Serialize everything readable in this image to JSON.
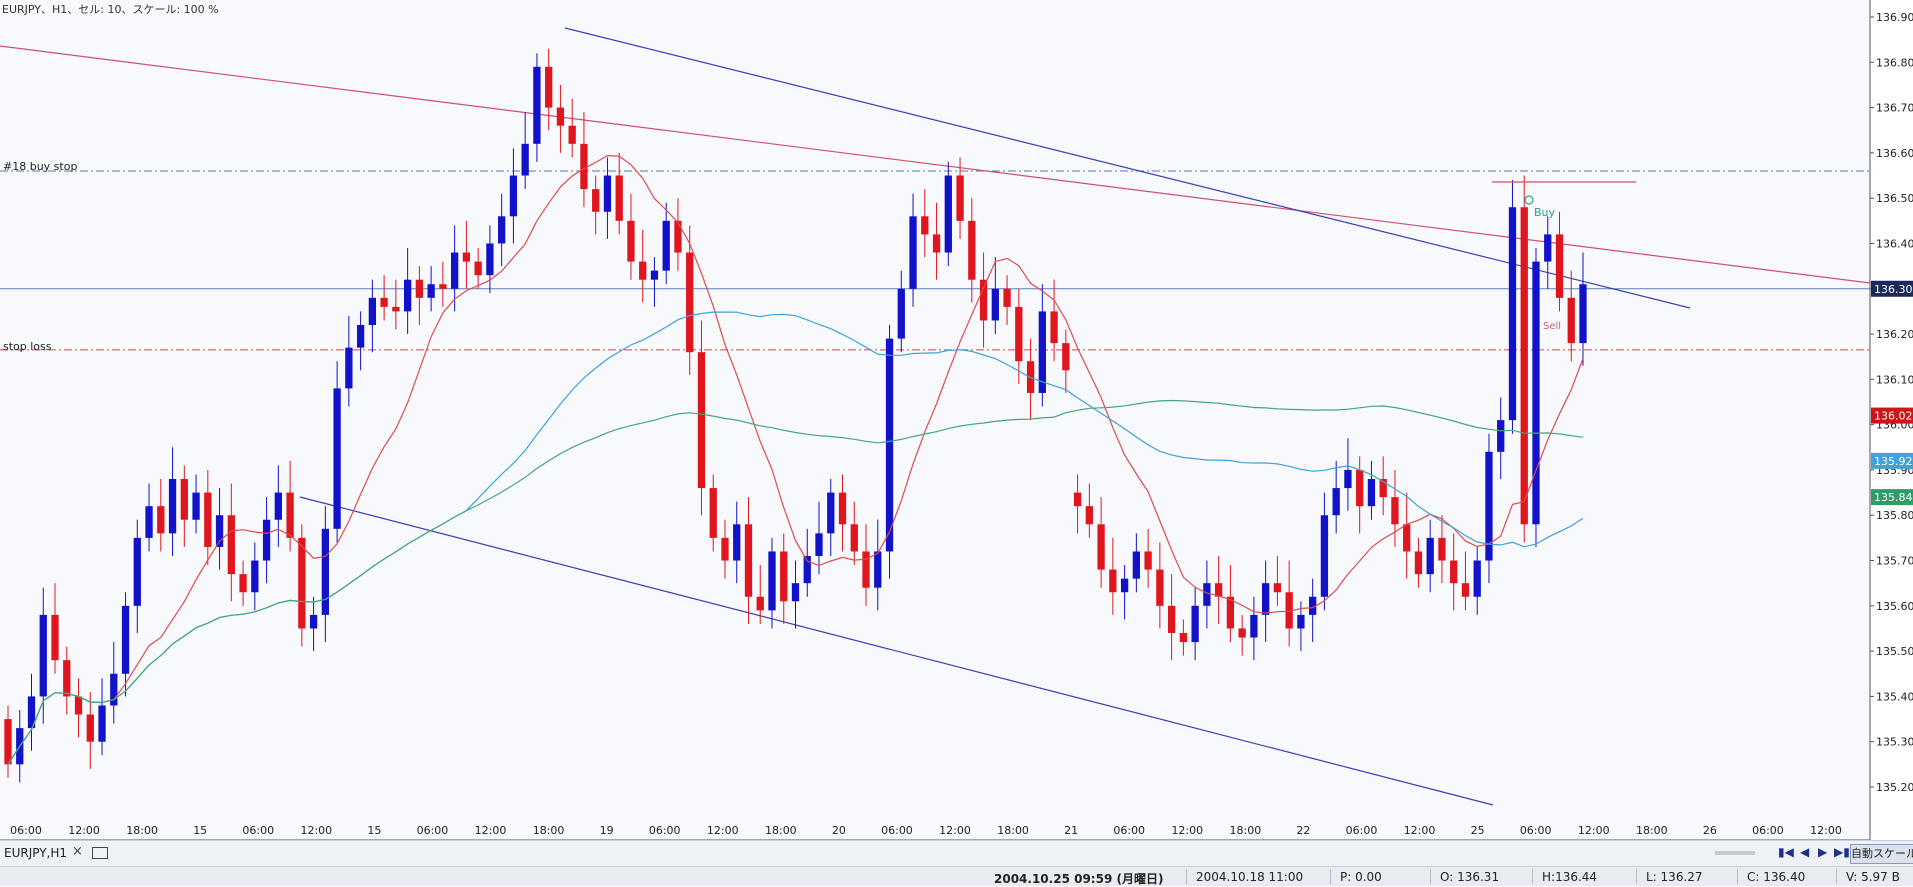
{
  "header": {
    "text": "EURJPY、H1、セル: 10、スケール: 100 %"
  },
  "levels": {
    "buy_stop_label": "#18 buy stop",
    "stop_loss_label": "stop loss",
    "buy_stop_price": 136.56,
    "stop_loss_price": 136.165,
    "current_price": 136.3
  },
  "chart_data": {
    "type": "candlestick",
    "symbol": "EURJPY",
    "timeframe": "H1",
    "y_range": [
      135.15,
      136.94
    ],
    "y_ticks": [
      "136.90",
      "136.80",
      "136.70",
      "136.60",
      "136.50",
      "136.40",
      "136.30",
      "136.20",
      "136.10",
      "136.00",
      "135.90",
      "135.80",
      "135.70",
      "135.60",
      "135.50",
      "135.40",
      "135.30",
      "135.20"
    ],
    "x_tick_labels": [
      "06:00",
      "12:00",
      "18:00",
      "15",
      "06:00",
      "12:00",
      "15",
      "06:00",
      "12:00",
      "18:00",
      "19",
      "06:00",
      "12:00",
      "18:00",
      "20",
      "06:00",
      "12:00",
      "18:00",
      "21",
      "06:00",
      "12:00",
      "18:00",
      "22",
      "06:00",
      "12:00",
      "25",
      "06:00",
      "12:00",
      "18:00",
      "26",
      "06:00",
      "12:00"
    ],
    "price_badges": [
      {
        "label": "136.30",
        "color": "#1b2a5a"
      },
      {
        "label": "136.02",
        "color": "#d0121b"
      },
      {
        "label": "135.92",
        "color": "#3fa2d8"
      },
      {
        "label": "135.84",
        "color": "#2e9e66"
      }
    ],
    "annotations": [
      "Buy",
      "Sell"
    ],
    "candles_open_close": [
      [
        135.35,
        135.25
      ],
      [
        135.25,
        135.33
      ],
      [
        135.33,
        135.4
      ],
      [
        135.4,
        135.58
      ],
      [
        135.58,
        135.48
      ],
      [
        135.48,
        135.4
      ],
      [
        135.4,
        135.36
      ],
      [
        135.36,
        135.3
      ],
      [
        135.3,
        135.38
      ],
      [
        135.38,
        135.45
      ],
      [
        135.45,
        135.6
      ],
      [
        135.6,
        135.75
      ],
      [
        135.75,
        135.82
      ],
      [
        135.82,
        135.76
      ],
      [
        135.76,
        135.88
      ],
      [
        135.88,
        135.79
      ],
      [
        135.79,
        135.85
      ],
      [
        135.85,
        135.73
      ],
      [
        135.73,
        135.8
      ],
      [
        135.8,
        135.67
      ],
      [
        135.67,
        135.63
      ],
      [
        135.63,
        135.7
      ],
      [
        135.7,
        135.79
      ],
      [
        135.79,
        135.85
      ],
      [
        135.85,
        135.75
      ],
      [
        135.75,
        135.55
      ],
      [
        135.55,
        135.58
      ],
      [
        135.58,
        135.77
      ],
      [
        135.77,
        136.08
      ],
      [
        136.08,
        136.17
      ],
      [
        136.17,
        136.22
      ],
      [
        136.22,
        136.28
      ],
      [
        136.28,
        136.26
      ],
      [
        136.26,
        136.25
      ],
      [
        136.25,
        136.32
      ],
      [
        136.32,
        136.28
      ],
      [
        136.28,
        136.31
      ],
      [
        136.31,
        136.3
      ],
      [
        136.3,
        136.38
      ],
      [
        136.38,
        136.36
      ],
      [
        136.36,
        136.33
      ],
      [
        136.33,
        136.4
      ],
      [
        136.4,
        136.46
      ],
      [
        136.46,
        136.55
      ],
      [
        136.55,
        136.62
      ],
      [
        136.62,
        136.79
      ],
      [
        136.79,
        136.7
      ],
      [
        136.7,
        136.66
      ],
      [
        136.66,
        136.62
      ],
      [
        136.62,
        136.52
      ],
      [
        136.52,
        136.47
      ],
      [
        136.47,
        136.55
      ],
      [
        136.55,
        136.45
      ],
      [
        136.45,
        136.36
      ],
      [
        136.36,
        136.32
      ],
      [
        136.32,
        136.34
      ],
      [
        136.34,
        136.45
      ],
      [
        136.45,
        136.38
      ],
      [
        136.38,
        136.16
      ],
      [
        136.16,
        135.86
      ],
      [
        135.86,
        135.75
      ],
      [
        135.75,
        135.7
      ],
      [
        135.7,
        135.78
      ],
      [
        135.78,
        135.62
      ],
      [
        135.62,
        135.59
      ],
      [
        135.59,
        135.72
      ],
      [
        135.72,
        135.61
      ],
      [
        135.61,
        135.65
      ],
      [
        135.65,
        135.71
      ],
      [
        135.71,
        135.76
      ],
      [
        135.76,
        135.85
      ],
      [
        135.85,
        135.78
      ],
      [
        135.78,
        135.72
      ],
      [
        135.72,
        135.64
      ],
      [
        135.64,
        135.72
      ],
      [
        135.72,
        136.19
      ],
      [
        136.19,
        136.3
      ],
      [
        136.3,
        136.46
      ],
      [
        136.46,
        136.42
      ],
      [
        136.42,
        136.38
      ],
      [
        136.38,
        136.55
      ],
      [
        136.55,
        136.45
      ],
      [
        136.45,
        136.32
      ],
      [
        136.32,
        136.23
      ],
      [
        136.23,
        136.3
      ],
      [
        136.3,
        136.26
      ],
      [
        136.26,
        136.14
      ],
      [
        136.14,
        136.07
      ],
      [
        136.07,
        136.25
      ],
      [
        136.25,
        136.18
      ],
      [
        136.18,
        136.12
      ],
      [
        135.85,
        135.82
      ],
      [
        135.82,
        135.78
      ],
      [
        135.78,
        135.68
      ],
      [
        135.68,
        135.63
      ],
      [
        135.63,
        135.66
      ],
      [
        135.66,
        135.72
      ],
      [
        135.72,
        135.68
      ],
      [
        135.68,
        135.6
      ],
      [
        135.6,
        135.54
      ],
      [
        135.54,
        135.52
      ],
      [
        135.52,
        135.6
      ],
      [
        135.6,
        135.65
      ],
      [
        135.65,
        135.62
      ],
      [
        135.62,
        135.55
      ],
      [
        135.55,
        135.53
      ],
      [
        135.53,
        135.58
      ],
      [
        135.58,
        135.65
      ],
      [
        135.65,
        135.63
      ],
      [
        135.63,
        135.55
      ],
      [
        135.55,
        135.58
      ],
      [
        135.58,
        135.62
      ],
      [
        135.62,
        135.8
      ],
      [
        135.8,
        135.86
      ],
      [
        135.86,
        135.9
      ],
      [
        135.9,
        135.82
      ],
      [
        135.82,
        135.88
      ],
      [
        135.88,
        135.84
      ],
      [
        135.84,
        135.78
      ],
      [
        135.78,
        135.72
      ],
      [
        135.72,
        135.67
      ],
      [
        135.67,
        135.75
      ],
      [
        135.75,
        135.7
      ],
      [
        135.7,
        135.65
      ],
      [
        135.65,
        135.62
      ],
      [
        135.62,
        135.7
      ],
      [
        135.7,
        135.94
      ],
      [
        135.94,
        136.01
      ],
      [
        136.01,
        136.48
      ],
      [
        136.48,
        135.78
      ],
      [
        135.78,
        136.36
      ],
      [
        136.36,
        136.42
      ],
      [
        136.42,
        136.28
      ],
      [
        136.28,
        136.18
      ],
      [
        136.18,
        136.31
      ]
    ]
  },
  "tab": {
    "label": "EURJPY,H1",
    "close": "×"
  },
  "nav": {
    "first": "▮◀",
    "prev": "◀",
    "next": "▶",
    "last": "▶▮",
    "autoscale": "自動スケール"
  },
  "status": {
    "datetime": "2004.10.25 09:59 (月曜日)",
    "bar_time": "2004.10.18 11:00",
    "p": "P: 0.00",
    "o": "O: 136.31",
    "h": "H:136.44",
    "l": "L: 136.27",
    "c": "C: 136.40",
    "v": "V: 5.97 B"
  }
}
